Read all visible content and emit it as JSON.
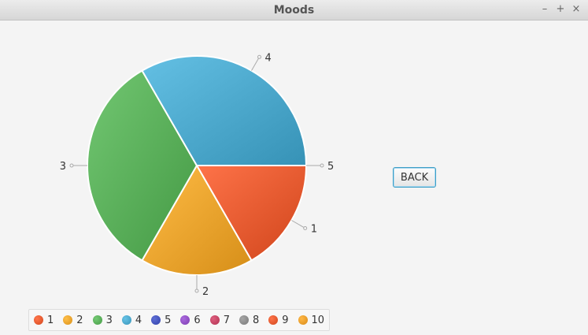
{
  "window": {
    "title": "Moods",
    "controls": {
      "minimize": "–",
      "maximize": "+",
      "close": "×"
    }
  },
  "back_button": {
    "label": "BACK"
  },
  "chart_data": {
    "type": "pie",
    "slices": [
      {
        "label": "5",
        "value": 0,
        "color": "#4056c0"
      },
      {
        "label": "1",
        "value": 2,
        "color": "#e2572d"
      },
      {
        "label": "2",
        "value": 2,
        "color": "#e8a02a"
      },
      {
        "label": "3",
        "value": 4,
        "color": "#56ab56"
      },
      {
        "label": "4",
        "value": 4,
        "color": "#48a4c8"
      }
    ],
    "legend": [
      {
        "label": "1",
        "color": "#e2572d"
      },
      {
        "label": "2",
        "color": "#e8a02a"
      },
      {
        "label": "3",
        "color": "#56ab56"
      },
      {
        "label": "4",
        "color": "#48a4c8"
      },
      {
        "label": "5",
        "color": "#4050b8"
      },
      {
        "label": "6",
        "color": "#8c4bc0"
      },
      {
        "label": "7",
        "color": "#c04060"
      },
      {
        "label": "8",
        "color": "#888888"
      },
      {
        "label": "9",
        "color": "#e0562c"
      },
      {
        "label": "10",
        "color": "#e89a28"
      }
    ],
    "legend_position": "bottom"
  }
}
